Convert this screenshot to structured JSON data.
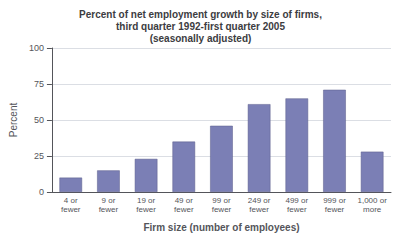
{
  "chart_data": {
    "type": "bar",
    "title": "Percent of net employment growth by size of firms,\nthird quarter 1992-first quarter 2005\n(seasonally adjusted)",
    "xlabel": "Firm size (number of employees)",
    "ylabel": "Percent",
    "categories": [
      "4 or\nfewer",
      "9 or\nfewer",
      "19 or\nfewer",
      "49 or\nfewer",
      "99 or\nfewer",
      "249 or\nfewer",
      "499 or\nfewer",
      "999 or\nfewer",
      "1,000 or\nmore"
    ],
    "values": [
      10,
      15,
      23,
      35,
      46,
      61,
      65,
      71,
      28
    ],
    "color": "#7b7fb5",
    "ylim": [
      0,
      100
    ],
    "yticks": [
      0,
      25,
      50,
      75,
      100
    ],
    "grid": true
  }
}
